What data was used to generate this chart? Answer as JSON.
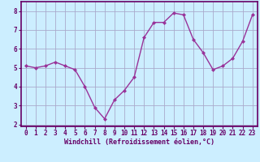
{
  "x": [
    0,
    1,
    2,
    3,
    4,
    5,
    6,
    7,
    8,
    9,
    10,
    11,
    12,
    13,
    14,
    15,
    16,
    17,
    18,
    19,
    20,
    21,
    22,
    23
  ],
  "y": [
    5.1,
    5.0,
    5.1,
    5.3,
    5.1,
    4.9,
    4.0,
    2.9,
    2.3,
    3.3,
    3.8,
    4.5,
    6.6,
    7.4,
    7.4,
    7.9,
    7.8,
    6.5,
    5.8,
    4.9,
    5.1,
    5.5,
    6.4,
    7.8
  ],
  "line_color": "#993399",
  "marker": "D",
  "marker_size": 2.0,
  "linewidth": 1.0,
  "bg_color": "#cceeff",
  "plot_bg_color": "#cceeff",
  "grid_color": "#aaaacc",
  "xlabel": "Windchill (Refroidissement éolien,°C)",
  "ylabel": "",
  "title": "",
  "xlim": [
    -0.5,
    23.5
  ],
  "ylim": [
    1.9,
    8.5
  ],
  "yticks": [
    2,
    3,
    4,
    5,
    6,
    7,
    8
  ],
  "xticks": [
    0,
    1,
    2,
    3,
    4,
    5,
    6,
    7,
    8,
    9,
    10,
    11,
    12,
    13,
    14,
    15,
    16,
    17,
    18,
    19,
    20,
    21,
    22,
    23
  ],
  "tick_fontsize": 5.5,
  "xlabel_fontsize": 6.0,
  "axis_color": "#660066",
  "tick_color": "#660066",
  "spine_color": "#660066"
}
